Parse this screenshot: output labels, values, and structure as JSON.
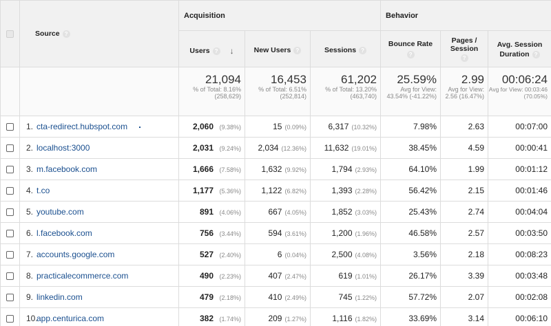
{
  "headers": {
    "source": "Source",
    "acquisition": "Acquisition",
    "behavior": "Behavior",
    "users": "Users",
    "new_users": "New Users",
    "sessions": "Sessions",
    "bounce_rate": "Bounce Rate",
    "pages_session_1": "Pages /",
    "pages_session_2": "Session",
    "avg_duration_1": "Avg. Session",
    "avg_duration_2": "Duration",
    "help_glyph": "?",
    "sort_glyph": "↓"
  },
  "totals": {
    "users": "21,094",
    "users_sub": "% of Total: 8.16% (258,629)",
    "new_users": "16,453",
    "new_users_sub": "% of Total: 6.51% (252,814)",
    "sessions": "61,202",
    "sessions_sub": "% of Total: 13.20% (463,740)",
    "bounce_rate": "25.59%",
    "bounce_rate_sub": "Avg for View: 43.54% (-41.22%)",
    "pages": "2.99",
    "pages_sub": "Avg for View: 2.56 (16.47%)",
    "duration": "00:06:24",
    "duration_sub": "Avg for View: 00:03:46 (70.05%)"
  },
  "rows": [
    {
      "rank": "1.",
      "source": "cta-redirect.hubspot.com",
      "users": "2,060",
      "users_pct": "(9.38%)",
      "new_users": "15",
      "new_users_pct": "(0.09%)",
      "sessions": "6,317",
      "sessions_pct": "(10.32%)",
      "bounce": "7.98%",
      "pages": "2.63",
      "duration": "00:07:00"
    },
    {
      "rank": "2.",
      "source": "localhost:3000",
      "users": "2,031",
      "users_pct": "(9.24%)",
      "new_users": "2,034",
      "new_users_pct": "(12.36%)",
      "sessions": "11,632",
      "sessions_pct": "(19.01%)",
      "bounce": "38.45%",
      "pages": "4.59",
      "duration": "00:00:41"
    },
    {
      "rank": "3.",
      "source": "m.facebook.com",
      "users": "1,666",
      "users_pct": "(7.58%)",
      "new_users": "1,632",
      "new_users_pct": "(9.92%)",
      "sessions": "1,794",
      "sessions_pct": "(2.93%)",
      "bounce": "64.10%",
      "pages": "1.99",
      "duration": "00:01:12"
    },
    {
      "rank": "4.",
      "source": "t.co",
      "users": "1,177",
      "users_pct": "(5.36%)",
      "new_users": "1,122",
      "new_users_pct": "(6.82%)",
      "sessions": "1,393",
      "sessions_pct": "(2.28%)",
      "bounce": "56.42%",
      "pages": "2.15",
      "duration": "00:01:46"
    },
    {
      "rank": "5.",
      "source": "youtube.com",
      "users": "891",
      "users_pct": "(4.06%)",
      "new_users": "667",
      "new_users_pct": "(4.05%)",
      "sessions": "1,852",
      "sessions_pct": "(3.03%)",
      "bounce": "25.43%",
      "pages": "2.74",
      "duration": "00:04:04"
    },
    {
      "rank": "6.",
      "source": "l.facebook.com",
      "users": "756",
      "users_pct": "(3.44%)",
      "new_users": "594",
      "new_users_pct": "(3.61%)",
      "sessions": "1,200",
      "sessions_pct": "(1.96%)",
      "bounce": "46.58%",
      "pages": "2.57",
      "duration": "00:03:50"
    },
    {
      "rank": "7.",
      "source": "accounts.google.com",
      "users": "527",
      "users_pct": "(2.40%)",
      "new_users": "6",
      "new_users_pct": "(0.04%)",
      "sessions": "2,500",
      "sessions_pct": "(4.08%)",
      "bounce": "3.56%",
      "pages": "2.18",
      "duration": "00:08:23"
    },
    {
      "rank": "8.",
      "source": "practicalecommerce.com",
      "users": "490",
      "users_pct": "(2.23%)",
      "new_users": "407",
      "new_users_pct": "(2.47%)",
      "sessions": "619",
      "sessions_pct": "(1.01%)",
      "bounce": "26.17%",
      "pages": "3.39",
      "duration": "00:03:48"
    },
    {
      "rank": "9.",
      "source": "linkedin.com",
      "users": "479",
      "users_pct": "(2.18%)",
      "new_users": "410",
      "new_users_pct": "(2.49%)",
      "sessions": "745",
      "sessions_pct": "(1.22%)",
      "bounce": "57.72%",
      "pages": "2.07",
      "duration": "00:02:08"
    },
    {
      "rank": "10.",
      "source": "app.centurica.com",
      "users": "382",
      "users_pct": "(1.74%)",
      "new_users": "209",
      "new_users_pct": "(1.27%)",
      "sessions": "1,116",
      "sessions_pct": "(1.82%)",
      "bounce": "33.69%",
      "pages": "3.14",
      "duration": "00:06:10"
    }
  ]
}
